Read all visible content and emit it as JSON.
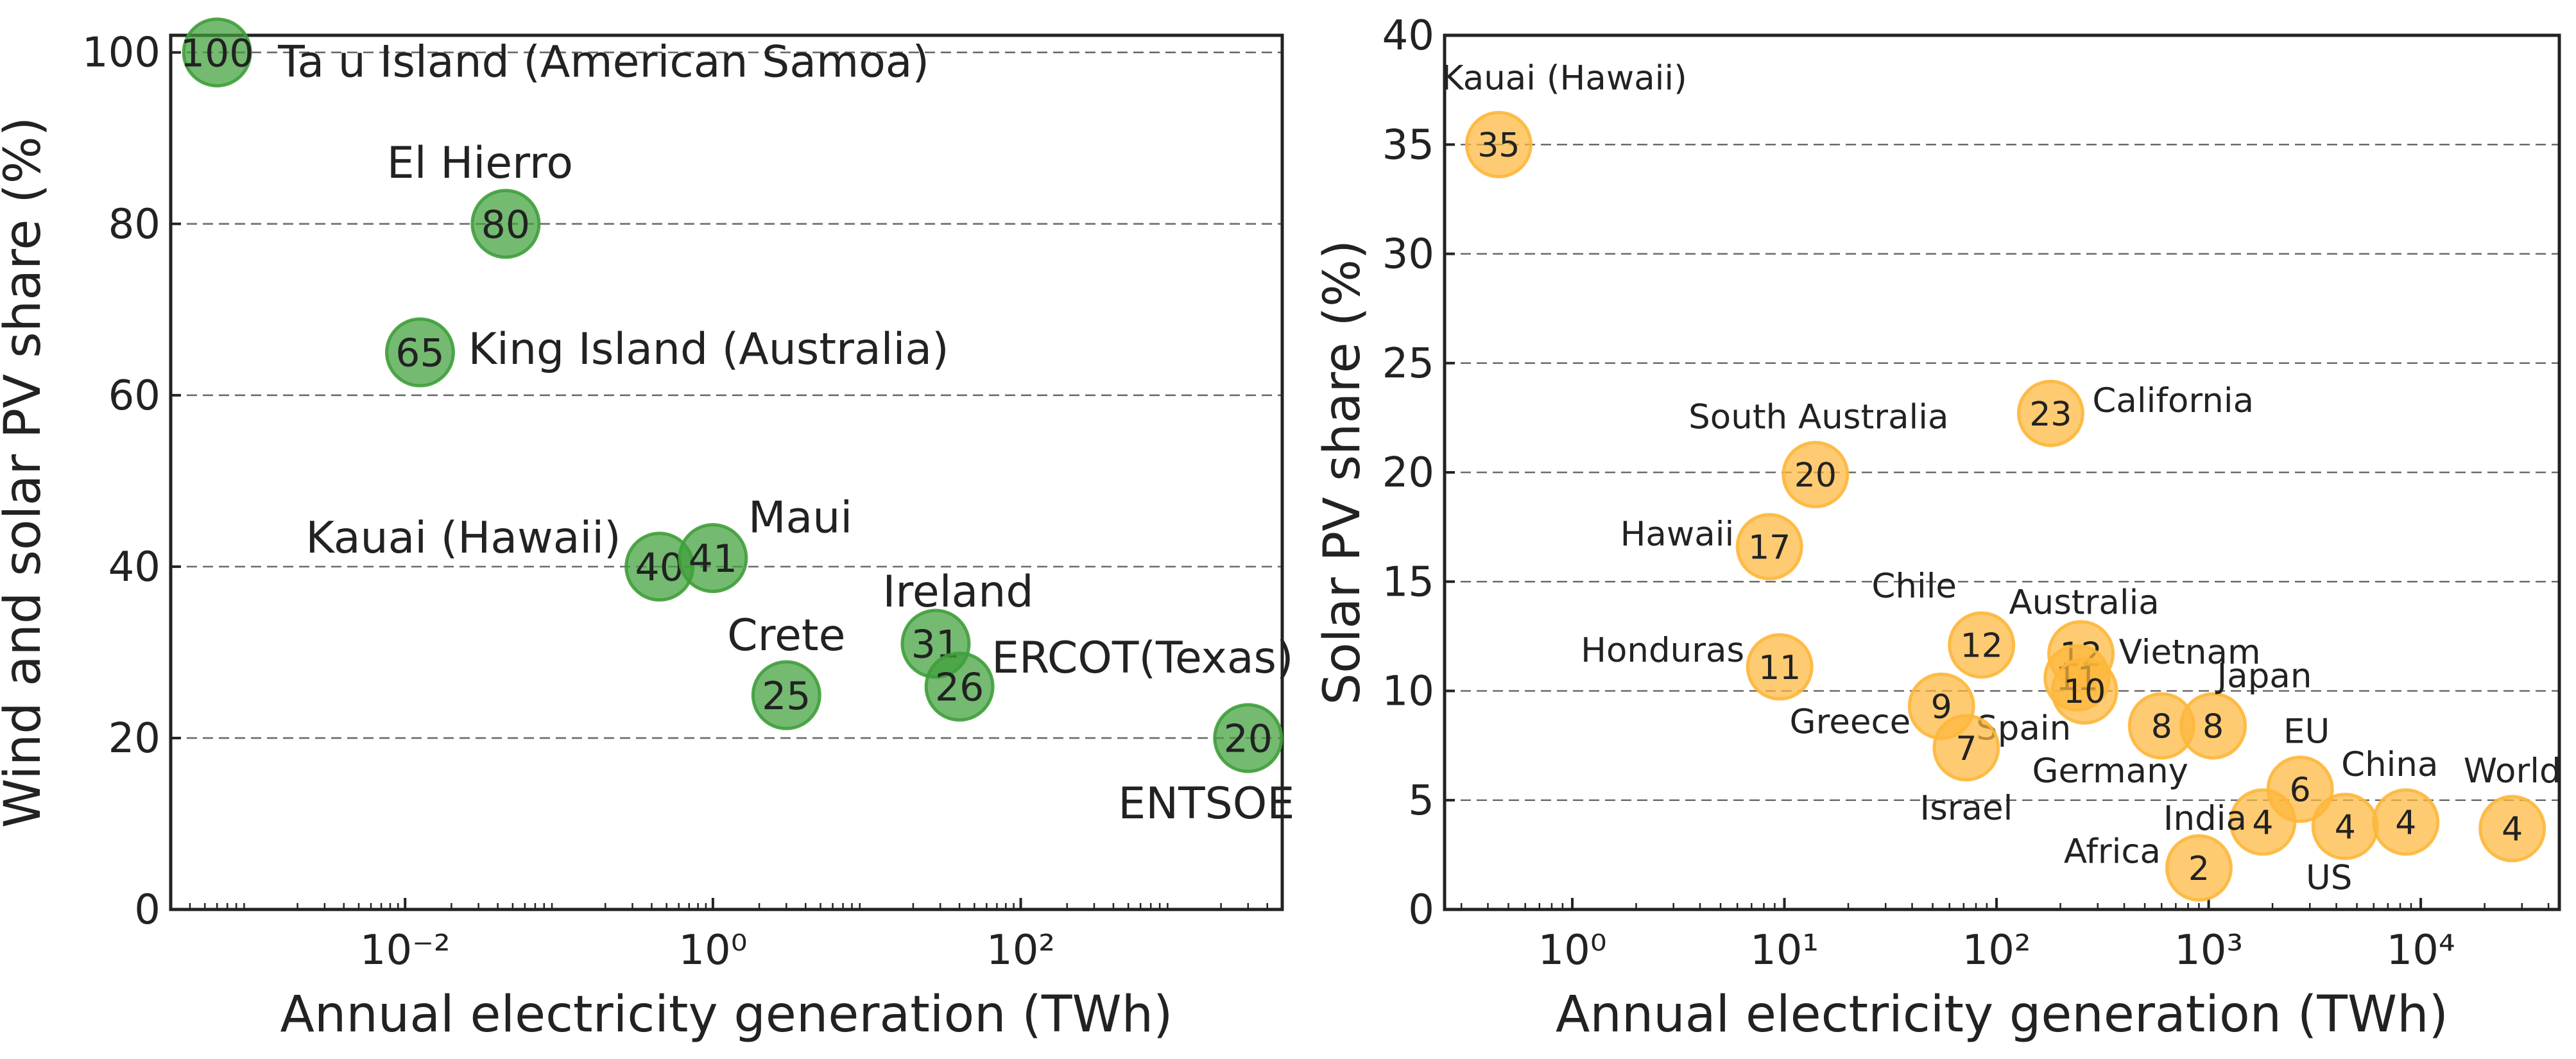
{
  "chart_data": [
    {
      "type": "scatter",
      "x_scale": "log",
      "xlim": [
        0.0003,
        5000
      ],
      "ylim": [
        0,
        102
      ],
      "xlabel": "Annual electricity generation (TWh)",
      "ylabel": "Wind and solar PV share (%)",
      "x_ticks": [
        0.01,
        1,
        100
      ],
      "x_tick_labels": [
        "10⁻²",
        "10⁰",
        "10²"
      ],
      "y_ticks": [
        0,
        20,
        40,
        60,
        80,
        100
      ],
      "y_tick_labels": [
        "0",
        "20",
        "40",
        "60",
        "80",
        "100"
      ],
      "grid": "horizontal dashed",
      "color": "#3f9f3a",
      "points": [
        {
          "x": 0.0006,
          "y": 100,
          "value_label": "100",
          "name": "Ta u Island (American Samoa)"
        },
        {
          "x": 0.045,
          "y": 80,
          "value_label": "80",
          "name": "El Hierro"
        },
        {
          "x": 0.0125,
          "y": 65,
          "value_label": "65",
          "name": "King Island (Australia)"
        },
        {
          "x": 0.45,
          "y": 40,
          "value_label": "40",
          "name": "Kauai (Hawaii)"
        },
        {
          "x": 1.0,
          "y": 41,
          "value_label": "41",
          "name": "Maui"
        },
        {
          "x": 3.0,
          "y": 25,
          "value_label": "25",
          "name": "Crete"
        },
        {
          "x": 28,
          "y": 31,
          "value_label": "31",
          "name": "Ireland"
        },
        {
          "x": 40,
          "y": 26,
          "value_label": "26",
          "name": "ERCOT(Texas)"
        },
        {
          "x": 3000,
          "y": 20,
          "value_label": "20",
          "name": "ENTSOE"
        }
      ]
    },
    {
      "type": "scatter",
      "x_scale": "log",
      "xlim": [
        0.25,
        45000
      ],
      "ylim": [
        0,
        40
      ],
      "xlabel": "Annual electricity generation (TWh)",
      "ylabel": "Solar PV share (%)",
      "x_ticks": [
        1,
        10,
        100,
        1000,
        10000
      ],
      "x_tick_labels": [
        "10⁰",
        "10¹",
        "10²",
        "10³",
        "10⁴"
      ],
      "y_ticks": [
        0,
        5,
        10,
        15,
        20,
        25,
        30,
        35,
        40
      ],
      "y_tick_labels": [
        "0",
        "5",
        "10",
        "15",
        "20",
        "25",
        "30",
        "35",
        "40"
      ],
      "grid": "horizontal dashed",
      "color": "#fdb73b",
      "points": [
        {
          "x": 0.45,
          "y": 35,
          "value_label": "35",
          "name": "Kauai (Hawaii)"
        },
        {
          "x": 180,
          "y": 22.7,
          "value_label": "23",
          "name": "California"
        },
        {
          "x": 14,
          "y": 19.9,
          "value_label": "20",
          "name": "South Australia"
        },
        {
          "x": 8.5,
          "y": 16.6,
          "value_label": "17",
          "name": "Hawaii"
        },
        {
          "x": 85,
          "y": 12.1,
          "value_label": "12",
          "name": "Chile"
        },
        {
          "x": 250,
          "y": 11.7,
          "value_label": "12",
          "name": "Australia"
        },
        {
          "x": 240,
          "y": 10.6,
          "value_label": "11",
          "name": "Vietnam"
        },
        {
          "x": 260,
          "y": 10.0,
          "value_label": "10",
          "name": "Spain"
        },
        {
          "x": 9.5,
          "y": 11.1,
          "value_label": "11",
          "name": "Honduras"
        },
        {
          "x": 55,
          "y": 9.3,
          "value_label": "9",
          "name": "Greece"
        },
        {
          "x": 72,
          "y": 7.4,
          "value_label": "7",
          "name": "Israel"
        },
        {
          "x": 600,
          "y": 8.4,
          "value_label": "8",
          "name": "Germany"
        },
        {
          "x": 1050,
          "y": 8.4,
          "value_label": "8",
          "name": "Japan"
        },
        {
          "x": 2700,
          "y": 5.5,
          "value_label": "6",
          "name": "EU"
        },
        {
          "x": 1800,
          "y": 4.0,
          "value_label": "4",
          "name": "India"
        },
        {
          "x": 4400,
          "y": 3.8,
          "value_label": "4",
          "name": "US"
        },
        {
          "x": 8500,
          "y": 4.0,
          "value_label": "4",
          "name": "China"
        },
        {
          "x": 27000,
          "y": 3.7,
          "value_label": "4",
          "name": "World"
        },
        {
          "x": 900,
          "y": 1.9,
          "value_label": "2",
          "name": "Africa"
        }
      ]
    }
  ]
}
